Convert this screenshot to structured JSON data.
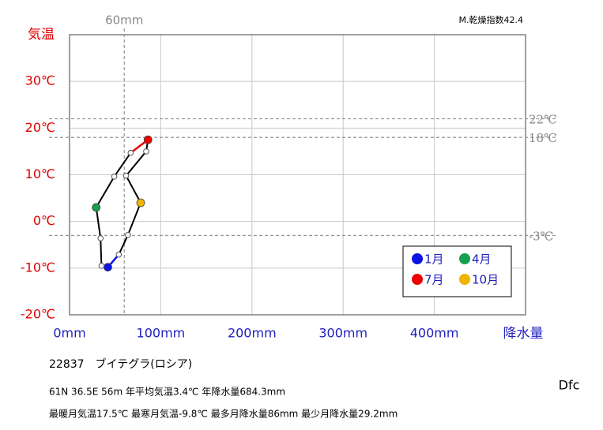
{
  "chart_data": {
    "type": "climograph",
    "y_label": "気温",
    "x_label": "降水量",
    "index_label": "M.乾燥指数42.4",
    "x": [
      42,
      35,
      34,
      29.2,
      49,
      67,
      86,
      84,
      62,
      78,
      64,
      54
    ],
    "values": [
      -9.8,
      -9.5,
      -3.6,
      3.0,
      9.6,
      14.7,
      17.5,
      15.0,
      9.8,
      4.0,
      -2.9,
      -7.1
    ],
    "point_names": [
      "1月",
      null,
      null,
      "4月",
      null,
      null,
      "7月",
      null,
      null,
      "10月",
      null,
      null
    ],
    "point_colors": [
      "#0a14e6",
      null,
      null,
      "#14a050",
      null,
      null,
      "#f00000",
      null,
      null,
      "#f0b400",
      null,
      null
    ],
    "line_color": "#000000",
    "xlim": [
      0,
      500
    ],
    "ylim": [
      -20,
      40
    ],
    "xticks": [
      {
        "value": 0,
        "label": "0mm"
      },
      {
        "value": 100,
        "label": "100mm"
      },
      {
        "value": 200,
        "label": "200mm"
      },
      {
        "value": 300,
        "label": "300mm"
      },
      {
        "value": 400,
        "label": "400mm"
      }
    ],
    "yticks": [
      {
        "value": -20,
        "label": "-20℃"
      },
      {
        "value": -10,
        "label": "-10℃"
      },
      {
        "value": 0,
        "label": "0℃"
      },
      {
        "value": 10,
        "label": "10℃"
      },
      {
        "value": 20,
        "label": "20℃"
      },
      {
        "value": 30,
        "label": "30℃"
      }
    ],
    "grid": true,
    "hlines": [
      {
        "value": 22,
        "label": "22℃"
      },
      {
        "value": 18,
        "label": "18℃"
      },
      {
        "value": -3,
        "label": "-3℃"
      }
    ],
    "vline": {
      "value": 60,
      "label": "60mm"
    },
    "station": "22837　ブイテグラ(ロシア)",
    "info_lines": [
      "61N  36.5E 56m   年平均気温3.4℃ 年降水量684.3mm",
      "最暖月気温17.5℃ 最寒月気温-9.8℃ 最多月降水量86mm 最少月降水量29.2mm"
    ],
    "climate_class": "Dfc"
  }
}
